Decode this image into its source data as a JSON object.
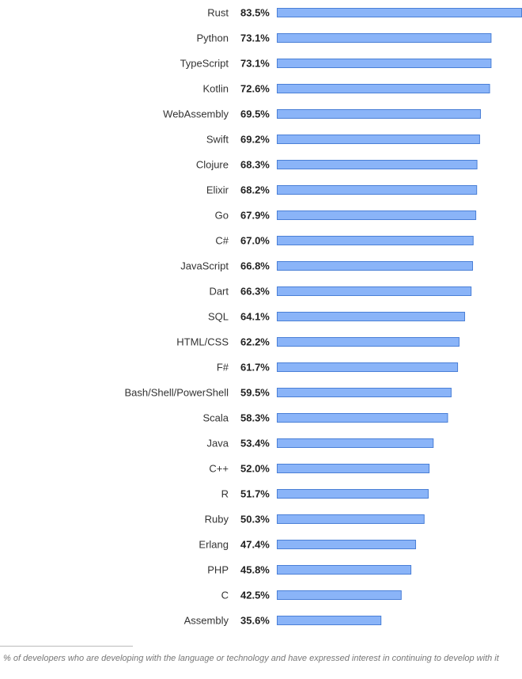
{
  "colors": {
    "bar_fill": "#8ab4f8",
    "bar_stroke": "#4a7fd6"
  },
  "chart_data": {
    "type": "bar",
    "orientation": "horizontal",
    "categories": [
      "Rust",
      "Python",
      "TypeScript",
      "Kotlin",
      "WebAssembly",
      "Swift",
      "Clojure",
      "Elixir",
      "Go",
      "C#",
      "JavaScript",
      "Dart",
      "SQL",
      "HTML/CSS",
      "F#",
      "Bash/Shell/PowerShell",
      "Scala",
      "Java",
      "C++",
      "R",
      "Ruby",
      "Erlang",
      "PHP",
      "C",
      "Assembly"
    ],
    "values": [
      83.5,
      73.1,
      73.1,
      72.6,
      69.5,
      69.2,
      68.3,
      68.2,
      67.9,
      67.0,
      66.8,
      66.3,
      64.1,
      62.2,
      61.7,
      59.5,
      58.3,
      53.4,
      52.0,
      51.7,
      50.3,
      47.4,
      45.8,
      42.5,
      35.6
    ],
    "value_labels": [
      "83.5%",
      "73.1%",
      "73.1%",
      "72.6%",
      "69.5%",
      "69.2%",
      "68.3%",
      "68.2%",
      "67.9%",
      "67.0%",
      "66.8%",
      "66.3%",
      "64.1%",
      "62.2%",
      "61.7%",
      "59.5%",
      "58.3%",
      "53.4%",
      "52.0%",
      "51.7%",
      "50.3%",
      "47.4%",
      "45.8%",
      "42.5%",
      "35.6%"
    ],
    "title": "",
    "xlabel": "",
    "ylabel": "",
    "unit": "%",
    "grid": false,
    "legend": "none"
  },
  "footnote": "% of developers who are developing with the language or technology and have expressed interest in continuing to develop with it"
}
